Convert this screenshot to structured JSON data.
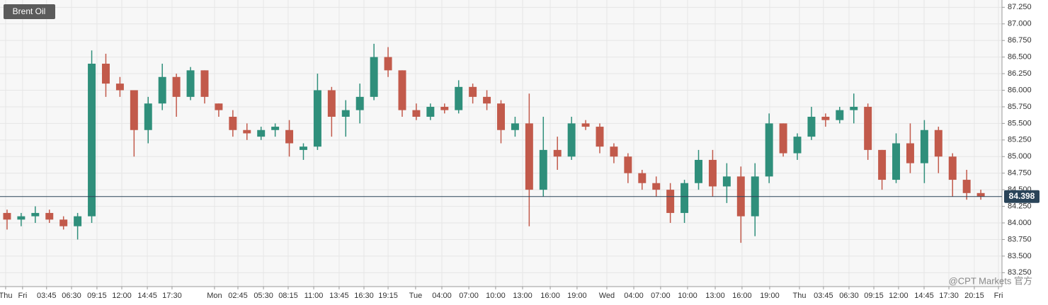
{
  "chart_data": {
    "type": "candlestick",
    "title": "Brent Oil",
    "watermark": "@CPT Markets 官方",
    "up_color": "#2f8f7b",
    "down_color": "#c25a4b",
    "grid": true,
    "x": [
      0.5,
      1.5,
      2.5,
      3.5,
      4.5,
      5.5,
      6.5,
      7.5,
      8.5,
      9.5,
      10.5,
      11.5,
      12.5,
      13.5,
      14.5,
      15.5,
      16.5,
      17.5,
      18.5,
      19.5,
      20.5,
      21.5,
      22.5,
      23.5,
      24.5,
      25.5,
      26.5,
      27.5,
      28.5,
      29.5,
      30.5,
      31.5,
      32.5,
      33.5,
      34.5,
      35.5,
      36.5,
      37.5,
      38.5,
      39.5,
      40.5,
      41.5,
      42.5,
      43.5,
      44.5,
      45.5,
      46.5,
      47.5,
      48.5,
      49.5,
      50.5,
      51.5,
      52.5,
      53.5,
      54.5,
      55.5,
      56.5,
      57.5,
      58.5,
      59.5,
      60.5,
      61.5,
      62.5,
      63.5,
      64.5,
      65.5,
      66.5,
      67.5,
      68.5,
      69.5
    ],
    "open": [
      84.15,
      84.05,
      84.1,
      84.15,
      84.05,
      83.95,
      84.1,
      86.4,
      86.1,
      86.0,
      85.4,
      85.8,
      86.2,
      85.9,
      86.3,
      85.8,
      85.6,
      85.4,
      85.3,
      85.4,
      85.4,
      85.1,
      85.15,
      86.0,
      85.6,
      85.7,
      85.9,
      86.5,
      86.3,
      85.7,
      85.6,
      85.75,
      85.7,
      86.05,
      85.9,
      85.8,
      85.4,
      85.5,
      84.5,
      85.1,
      85.0,
      85.5,
      85.45,
      85.15,
      85.0,
      84.75,
      84.6,
      84.5,
      84.15,
      84.6,
      84.95,
      84.55,
      84.7,
      84.1,
      84.7,
      85.5,
      85.05,
      85.3,
      85.6,
      85.55,
      85.7,
      85.75,
      85.1,
      84.65,
      85.2,
      84.9,
      85.4,
      85.0,
      84.65,
      84.45
    ],
    "high": [
      84.2,
      84.15,
      84.25,
      84.2,
      84.1,
      84.15,
      86.6,
      86.55,
      86.2,
      86.0,
      85.9,
      86.4,
      86.25,
      86.35,
      86.3,
      85.8,
      85.7,
      85.5,
      85.45,
      85.5,
      85.55,
      85.2,
      86.25,
      86.05,
      85.85,
      86.1,
      86.7,
      86.65,
      86.3,
      85.8,
      85.8,
      85.8,
      86.15,
      86.1,
      86.0,
      85.85,
      85.6,
      85.95,
      85.6,
      85.3,
      85.6,
      85.55,
      85.5,
      85.2,
      85.05,
      84.8,
      84.7,
      84.6,
      84.65,
      85.1,
      85.1,
      84.9,
      84.85,
      84.9,
      85.65,
      85.5,
      85.35,
      85.75,
      85.65,
      85.75,
      85.95,
      85.8,
      85.1,
      85.35,
      85.5,
      85.55,
      85.45,
      85.05,
      84.8,
      84.5
    ],
    "low": [
      83.9,
      83.95,
      84.0,
      84.0,
      83.9,
      83.75,
      84.0,
      85.9,
      85.9,
      85.0,
      85.2,
      85.7,
      85.6,
      85.85,
      85.8,
      85.6,
      85.3,
      85.25,
      85.25,
      85.3,
      85.0,
      84.95,
      85.1,
      85.3,
      85.3,
      85.5,
      85.85,
      86.2,
      85.6,
      85.55,
      85.55,
      85.65,
      85.65,
      85.8,
      85.7,
      85.2,
      85.3,
      83.95,
      84.4,
      84.8,
      84.95,
      85.4,
      85.05,
      84.9,
      84.6,
      84.5,
      84.4,
      84.0,
      84.0,
      84.5,
      84.4,
      84.3,
      83.7,
      83.8,
      84.6,
      85.0,
      84.95,
      85.25,
      85.45,
      85.5,
      85.5,
      84.95,
      84.5,
      84.6,
      84.75,
      84.6,
      84.75,
      84.4,
      84.35,
      84.35
    ],
    "close": [
      84.05,
      84.1,
      84.15,
      84.05,
      83.95,
      84.1,
      86.4,
      86.1,
      86.0,
      85.4,
      85.8,
      86.2,
      85.9,
      86.3,
      85.9,
      85.7,
      85.4,
      85.35,
      85.4,
      85.45,
      85.2,
      85.15,
      86.0,
      85.6,
      85.7,
      85.9,
      86.5,
      86.3,
      85.7,
      85.6,
      85.75,
      85.7,
      86.05,
      85.9,
      85.8,
      85.4,
      85.5,
      84.5,
      85.1,
      85.0,
      85.5,
      85.45,
      85.15,
      85.0,
      84.75,
      84.6,
      84.5,
      84.15,
      84.6,
      84.95,
      84.55,
      84.7,
      84.1,
      84.7,
      85.5,
      85.05,
      85.3,
      85.6,
      85.55,
      85.7,
      85.75,
      85.1,
      84.65,
      85.2,
      84.9,
      85.4,
      85.0,
      84.65,
      84.45,
      84.4
    ],
    "current_price": 84.398,
    "current_color": "#2a4459",
    "xlim": [
      0,
      71
    ],
    "ylim": [
      83.04,
      87.36
    ],
    "yticks": [
      {
        "value": 83.25,
        "label": "83.250"
      },
      {
        "value": 83.5,
        "label": "83.500"
      },
      {
        "value": 83.75,
        "label": "83.750"
      },
      {
        "value": 84,
        "label": "84.000"
      },
      {
        "value": 84.25,
        "label": "84.250"
      },
      {
        "value": 84.5,
        "label": "84.500"
      },
      {
        "value": 84.75,
        "label": "84.750"
      },
      {
        "value": 85,
        "label": "85.000"
      },
      {
        "value": 85.25,
        "label": "85.250"
      },
      {
        "value": 85.5,
        "label": "85.500"
      },
      {
        "value": 85.75,
        "label": "85.750"
      },
      {
        "value": 86,
        "label": "86.000"
      },
      {
        "value": 86.25,
        "label": "86.250"
      },
      {
        "value": 86.5,
        "label": "86.500"
      },
      {
        "value": 86.75,
        "label": "86.750"
      },
      {
        "value": 87,
        "label": "87.000"
      },
      {
        "value": 87.25,
        "label": "87.250"
      }
    ],
    "xticks": [
      {
        "value": 0.4,
        "label": "Thu"
      },
      {
        "value": 1.6,
        "label": "Fri"
      },
      {
        "value": 3.3,
        "label": "03:45"
      },
      {
        "value": 5.07,
        "label": "06:30"
      },
      {
        "value": 6.87,
        "label": "09:15"
      },
      {
        "value": 8.63,
        "label": "12:00"
      },
      {
        "value": 10.44,
        "label": "14:45"
      },
      {
        "value": 12.19,
        "label": "17:30"
      },
      {
        "value": 15.2,
        "label": "Mon"
      },
      {
        "value": 16.86,
        "label": "02:45"
      },
      {
        "value": 18.67,
        "label": "05:30"
      },
      {
        "value": 20.42,
        "label": "08:15"
      },
      {
        "value": 22.23,
        "label": "11:00"
      },
      {
        "value": 24.03,
        "label": "13:45"
      },
      {
        "value": 25.79,
        "label": "16:30"
      },
      {
        "value": 27.5,
        "label": "19:15"
      },
      {
        "value": 29.45,
        "label": "Tue"
      },
      {
        "value": 31.31,
        "label": "04:00"
      },
      {
        "value": 33.22,
        "label": "07:00"
      },
      {
        "value": 35.12,
        "label": "10:00"
      },
      {
        "value": 37.03,
        "label": "13:00"
      },
      {
        "value": 38.99,
        "label": "16:00"
      },
      {
        "value": 40.89,
        "label": "19:00"
      },
      {
        "value": 43.0,
        "label": "Wed"
      },
      {
        "value": 44.91,
        "label": "04:00"
      },
      {
        "value": 46.81,
        "label": "07:00"
      },
      {
        "value": 48.72,
        "label": "10:00"
      },
      {
        "value": 50.68,
        "label": "13:00"
      },
      {
        "value": 52.58,
        "label": "16:00"
      },
      {
        "value": 54.54,
        "label": "19:00"
      },
      {
        "value": 56.65,
        "label": "Thu"
      },
      {
        "value": 58.35,
        "label": "03:45"
      },
      {
        "value": 60.16,
        "label": "06:30"
      },
      {
        "value": 61.92,
        "label": "09:15"
      },
      {
        "value": 63.67,
        "label": "12:00"
      },
      {
        "value": 65.48,
        "label": "14:45"
      },
      {
        "value": 67.24,
        "label": "17:30"
      },
      {
        "value": 69.04,
        "label": "20:15"
      },
      {
        "value": 70.75,
        "label": "Fri"
      }
    ]
  }
}
